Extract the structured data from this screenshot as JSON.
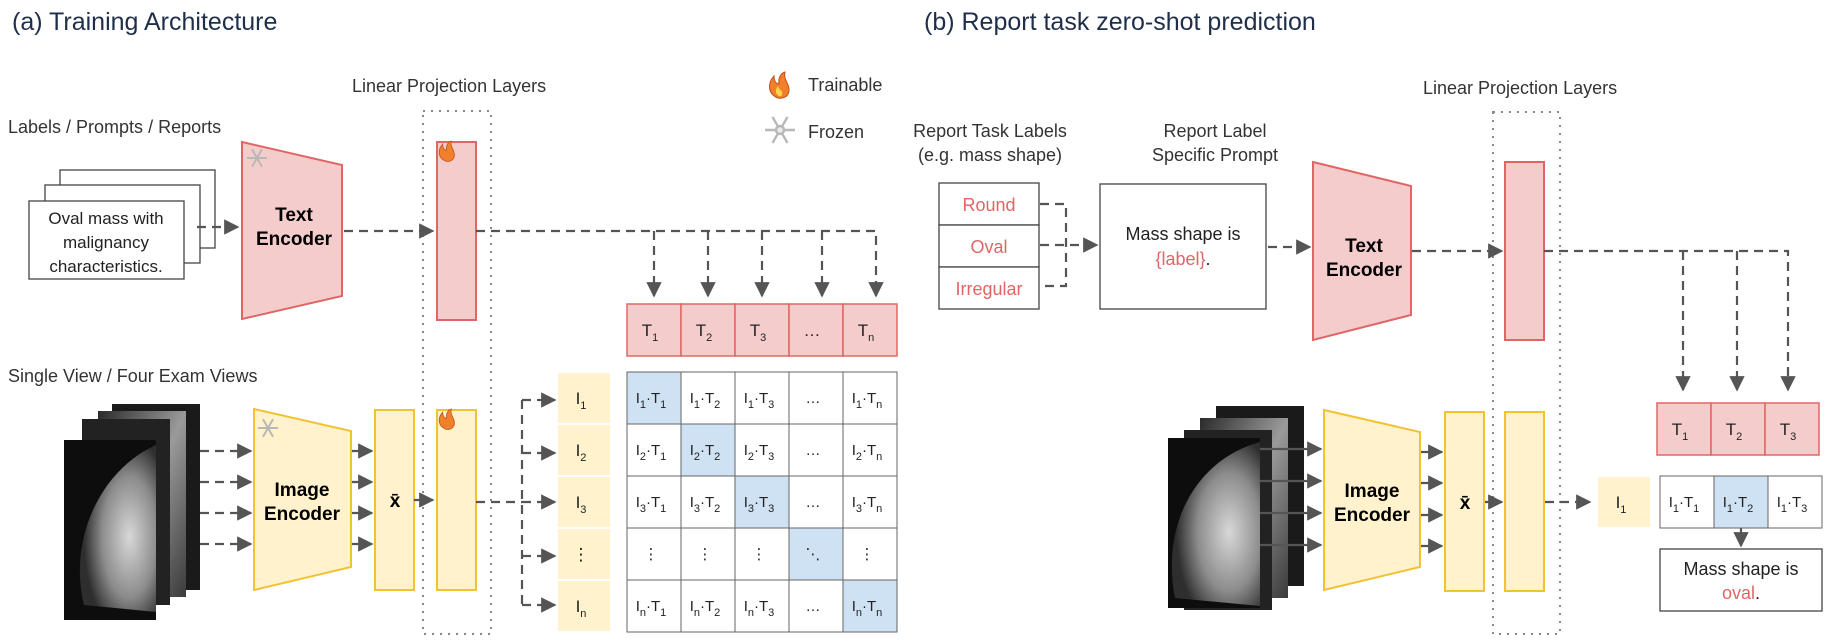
{
  "colors": {
    "text_red": "#e06666",
    "pink_fill": "#f4cccc",
    "pink_stroke": "#e06666",
    "yellow_fill": "#fff2cc",
    "yellow_stroke": "#f1c232",
    "blue_fill": "#cfe2f3",
    "dashed_gray": "#555555",
    "box_border": "#444444"
  },
  "panel_a": {
    "title": "(a) Training Architecture",
    "linear_projection_label": "Linear Projection Layers",
    "legend": {
      "trainable": "Trainable",
      "frozen": "Frozen"
    },
    "text_input_header": "Labels / Prompts / Reports",
    "text_input_lines": [
      "Oval mass with",
      "malignancy",
      "characteristics."
    ],
    "text_encoder_lines": [
      "Text",
      "Encoder"
    ],
    "image_input_header": "Single View / Four Exam Views",
    "image_encoder_lines": [
      "Image",
      "Encoder"
    ],
    "pooled_symbol": "x̄",
    "text_embeddings": [
      {
        "base": "T",
        "sub": "1"
      },
      {
        "base": "T",
        "sub": "2"
      },
      {
        "base": "T",
        "sub": "3"
      },
      {
        "base": "…",
        "sub": ""
      },
      {
        "base": "T",
        "sub": "n"
      }
    ],
    "image_embeddings": [
      {
        "base": "I",
        "sub": "1"
      },
      {
        "base": "I",
        "sub": "2"
      },
      {
        "base": "I",
        "sub": "3"
      },
      {
        "base": "⋮",
        "sub": ""
      },
      {
        "base": "I",
        "sub": "n"
      }
    ],
    "matrix": [
      [
        "I1·T1",
        "I1·T2",
        "I1·T3",
        "…",
        "I1·Tn"
      ],
      [
        "I2·T1",
        "I2·T2",
        "I2·T3",
        "…",
        "I2·Tn"
      ],
      [
        "I3·T1",
        "I3·T2",
        "I3·T3",
        "…",
        "I3·Tn"
      ],
      [
        "⋮",
        "⋮",
        "⋮",
        "⋱",
        "⋮"
      ],
      [
        "In·T1",
        "In·T2",
        "In·T3",
        "…",
        "In·Tn"
      ]
    ]
  },
  "panel_b": {
    "title": "(b) Report task zero-shot prediction",
    "task_labels_header": [
      "Report Task Labels",
      "(e.g. mass shape)"
    ],
    "task_labels": [
      "Round",
      "Oval",
      "Irregular"
    ],
    "prompt_header": [
      "Report Label",
      "Specific Prompt"
    ],
    "prompt_text": "Mass shape is",
    "prompt_placeholder": "{label}",
    "prompt_period": ".",
    "linear_projection_label": "Linear Projection Layers",
    "text_encoder_lines": [
      "Text",
      "Encoder"
    ],
    "image_encoder_lines": [
      "Image",
      "Encoder"
    ],
    "pooled_symbol": "x̄",
    "text_embeddings": [
      {
        "base": "T",
        "sub": "1"
      },
      {
        "base": "T",
        "sub": "2"
      },
      {
        "base": "T",
        "sub": "3"
      }
    ],
    "image_embedding": {
      "base": "I",
      "sub": "1"
    },
    "scores": [
      "I1·T1",
      "I1·T2",
      "I1·T3"
    ],
    "result_text": "Mass shape is",
    "result_value": "oval",
    "result_period": "."
  }
}
